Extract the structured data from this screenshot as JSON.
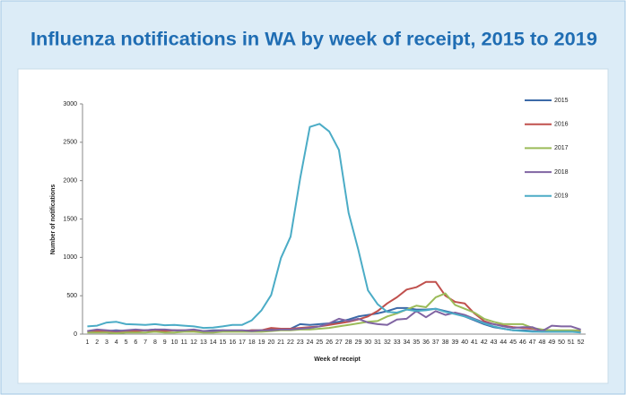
{
  "chart_data": {
    "type": "line",
    "title": "Influenza notifications in WA by week of receipt, 2015 to 2019",
    "x_label": "Week of receipt",
    "y_label": "Number of notifications",
    "categories": [
      "1",
      "2",
      "3",
      "4",
      "5",
      "6",
      "7",
      "8",
      "9",
      "10",
      "11",
      "12",
      "13",
      "14",
      "15",
      "16",
      "17",
      "18",
      "19",
      "20",
      "21",
      "22",
      "23",
      "24",
      "25",
      "26",
      "27",
      "28",
      "29",
      "30",
      "31",
      "32",
      "33",
      "34",
      "35",
      "36",
      "37",
      "38",
      "39",
      "40",
      "41",
      "42",
      "43",
      "44",
      "45",
      "46",
      "47",
      "48",
      "49",
      "50",
      "51",
      "52"
    ],
    "ylim": [
      0,
      3000
    ],
    "yticks": [
      0,
      500,
      1000,
      1500,
      2000,
      2500,
      3000
    ],
    "grid": false,
    "legend": "right",
    "series": [
      {
        "name": "2015",
        "color": "#3c6aa8",
        "values": [
          40,
          50,
          40,
          50,
          40,
          40,
          50,
          60,
          50,
          50,
          40,
          50,
          40,
          50,
          50,
          40,
          40,
          50,
          50,
          60,
          60,
          70,
          130,
          120,
          130,
          140,
          160,
          190,
          230,
          250,
          270,
          300,
          340,
          340,
          320,
          320,
          330,
          300,
          270,
          230,
          180,
          130,
          90,
          70,
          50,
          50,
          40,
          30,
          30,
          30,
          30,
          30
        ]
      },
      {
        "name": "2016",
        "color": "#c0504d",
        "values": [
          30,
          40,
          40,
          30,
          40,
          40,
          50,
          40,
          40,
          50,
          50,
          40,
          30,
          40,
          40,
          40,
          40,
          50,
          50,
          80,
          70,
          70,
          80,
          90,
          100,
          120,
          140,
          160,
          190,
          230,
          300,
          400,
          480,
          580,
          610,
          680,
          680,
          500,
          420,
          400,
          270,
          170,
          130,
          110,
          90,
          80,
          70,
          50,
          40,
          40,
          40,
          30
        ]
      },
      {
        "name": "2017",
        "color": "#9bbb59",
        "values": [
          20,
          20,
          20,
          10,
          20,
          20,
          20,
          30,
          20,
          20,
          30,
          30,
          20,
          20,
          30,
          30,
          30,
          30,
          30,
          40,
          50,
          50,
          60,
          60,
          70,
          80,
          100,
          120,
          140,
          160,
          170,
          230,
          270,
          320,
          370,
          350,
          480,
          530,
          380,
          330,
          280,
          200,
          160,
          130,
          130,
          130,
          80,
          60,
          50,
          50,
          50,
          50
        ]
      },
      {
        "name": "2018",
        "color": "#8064a2",
        "values": [
          40,
          60,
          50,
          40,
          50,
          60,
          50,
          60,
          60,
          50,
          50,
          60,
          40,
          40,
          50,
          50,
          50,
          40,
          50,
          50,
          60,
          60,
          70,
          80,
          100,
          140,
          200,
          170,
          200,
          150,
          130,
          120,
          190,
          200,
          300,
          220,
          300,
          250,
          280,
          250,
          200,
          150,
          130,
          100,
          80,
          90,
          90,
          40,
          110,
          100,
          100,
          60
        ]
      },
      {
        "name": "2019",
        "color": "#4bacc6",
        "values": [
          100,
          110,
          150,
          160,
          130,
          125,
          120,
          130,
          115,
          120,
          110,
          100,
          80,
          85,
          100,
          120,
          120,
          180,
          310,
          510,
          990,
          1270,
          2030,
          2700,
          2740,
          2640,
          2400,
          1580,
          1100,
          570,
          390,
          290,
          280,
          320,
          300,
          310,
          330,
          290,
          260,
          230,
          190,
          140,
          100,
          70,
          50,
          40,
          30,
          30,
          30,
          30,
          30,
          20
        ]
      }
    ]
  }
}
